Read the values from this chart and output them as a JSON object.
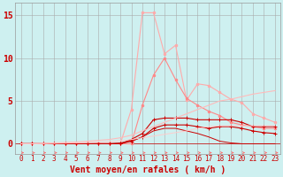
{
  "x": [
    0,
    1,
    2,
    3,
    4,
    5,
    6,
    7,
    8,
    9,
    10,
    11,
    12,
    13,
    14,
    15,
    16,
    17,
    18,
    19,
    20,
    21,
    22,
    23
  ],
  "background_color": "#cef0f0",
  "grid_color": "#aaaaaa",
  "xlabel": "Vent moyen/en rafales ( km/h )",
  "xlabel_color": "#cc0000",
  "yticks": [
    0,
    5,
    10,
    15
  ],
  "ylim": [
    -1.2,
    16.5
  ],
  "xlim": [
    -0.5,
    23.5
  ],
  "lines": [
    {
      "y": [
        0,
        0,
        0,
        0,
        0,
        0,
        0,
        0,
        0,
        0,
        4.0,
        15.3,
        15.3,
        10.5,
        11.5,
        5.1,
        7.0,
        6.8,
        6.0,
        5.2,
        4.8,
        3.5,
        3.0,
        2.5
      ],
      "color": "#ffaaaa",
      "linewidth": 0.8,
      "marker": "o",
      "markersize": 1.8
    },
    {
      "y": [
        0,
        0,
        0,
        0,
        0,
        0,
        0,
        0,
        0,
        0,
        0,
        4.5,
        8.0,
        10.0,
        7.5,
        5.3,
        4.5,
        3.8,
        3.3,
        2.5,
        2.2,
        2.0,
        1.8,
        1.8
      ],
      "color": "#ff8888",
      "linewidth": 0.8,
      "marker": "o",
      "markersize": 1.8
    },
    {
      "y": [
        0,
        0,
        0,
        0,
        0,
        0,
        0,
        0,
        0,
        0,
        0.5,
        1.2,
        2.8,
        3.0,
        3.0,
        3.0,
        2.8,
        2.8,
        2.8,
        2.8,
        2.5,
        2.0,
        2.0,
        2.0
      ],
      "color": "#cc0000",
      "linewidth": 0.8,
      "marker": "+",
      "markersize": 3.0
    },
    {
      "y": [
        0,
        0,
        0,
        0,
        0,
        0,
        0,
        0,
        0,
        0,
        0.3,
        0.8,
        1.8,
        2.2,
        2.2,
        2.2,
        2.0,
        1.8,
        2.0,
        2.0,
        1.8,
        1.5,
        1.3,
        1.2
      ],
      "color": "#cc0000",
      "linewidth": 0.8,
      "marker": "+",
      "markersize": 3.0
    },
    {
      "y": [
        0,
        0,
        0,
        0,
        0,
        0,
        0,
        0,
        0,
        0.1,
        0.3,
        0.8,
        1.5,
        1.8,
        1.8,
        1.5,
        1.2,
        0.8,
        0.3,
        0.1,
        0.0,
        0.0,
        0.0,
        0.0
      ],
      "color": "#cc0000",
      "linewidth": 0.7,
      "marker": null,
      "markersize": 0
    },
    {
      "y": [
        0,
        0,
        0.05,
        0.1,
        0.15,
        0.2,
        0.3,
        0.4,
        0.5,
        0.7,
        1.0,
        1.5,
        2.0,
        2.5,
        3.0,
        3.5,
        4.0,
        4.5,
        5.0,
        5.2,
        5.5,
        5.8,
        6.0,
        6.2
      ],
      "color": "#ffbbbb",
      "linewidth": 0.8,
      "marker": null,
      "markersize": 0
    },
    {
      "y": [
        0,
        0,
        0.02,
        0.05,
        0.08,
        0.1,
        0.15,
        0.2,
        0.25,
        0.35,
        0.5,
        0.7,
        0.9,
        1.1,
        1.3,
        1.5,
        1.8,
        2.0,
        2.1,
        2.1,
        2.1,
        2.1,
        2.1,
        2.1
      ],
      "color": "#ffcccc",
      "linewidth": 0.7,
      "marker": null,
      "markersize": 0
    }
  ],
  "arrow_color": "#ff6666",
  "axis_fontsize": 6,
  "tick_fontsize": 5.5,
  "ytick_fontsize": 7
}
